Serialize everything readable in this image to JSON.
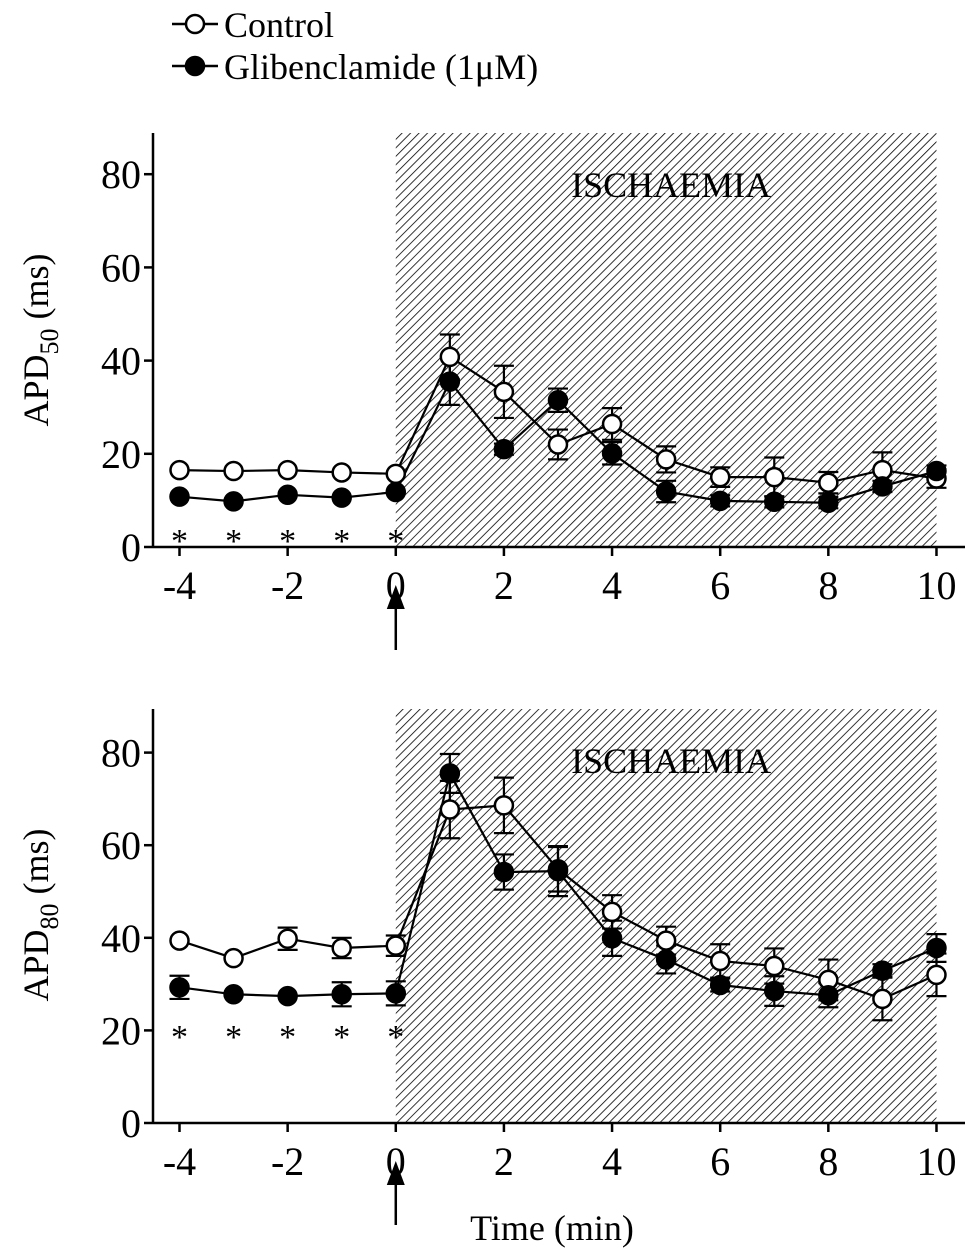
{
  "legend": [
    {
      "label": "Control",
      "marker": "open-circle"
    },
    {
      "label": "Glibenclamide (1μM)",
      "marker": "filled-circle"
    }
  ],
  "x_axis_title": "Time (min)",
  "colors": {
    "line": "#000000",
    "open_marker_fill": "#ffffff",
    "filled_marker_fill": "#000000",
    "hatch": "#000000"
  },
  "chart_data": [
    {
      "type": "line",
      "ylabel_main": "APD",
      "ylabel_sub": "50",
      "ylabel_unit": " (ms)",
      "shaded_region": {
        "label": "ISCHAEMIA",
        "x_start": 0,
        "x_end": 10,
        "pattern": "diagonal-hatch"
      },
      "event_marker": {
        "x": 0,
        "symbol": "up-arrow"
      },
      "significance": {
        "symbol": "*",
        "x": [
          -4,
          -3,
          -2,
          -1,
          0
        ]
      },
      "x_ticks": [
        -4,
        -2,
        0,
        2,
        4,
        6,
        8,
        10
      ],
      "y_ticks": [
        0,
        20,
        40,
        60,
        80
      ],
      "xlim": [
        -4.6,
        10.6
      ],
      "ylim": [
        0,
        90
      ],
      "grid": false,
      "series": [
        {
          "name": "Control",
          "x": [
            -4,
            -3,
            -2,
            -1,
            0,
            1,
            2,
            3,
            4,
            5,
            6,
            7,
            8,
            9,
            10
          ],
          "y": [
            16.5,
            16.3,
            16.5,
            16.0,
            15.7,
            40.8,
            33.3,
            22.0,
            26.4,
            18.8,
            15.0,
            15.0,
            13.8,
            16.5,
            14.7
          ],
          "err": [
            0.6,
            0.6,
            0.6,
            0.6,
            0.6,
            4.8,
            5.6,
            3.2,
            3.4,
            2.8,
            2.1,
            4.2,
            2.3,
            3.8,
            2.0
          ]
        },
        {
          "name": "Glibenclamide (1μM)",
          "x": [
            -4,
            -3,
            -2,
            -1,
            0,
            1,
            2,
            3,
            4,
            5,
            6,
            7,
            8,
            9,
            10
          ],
          "y": [
            10.8,
            9.8,
            11.2,
            10.6,
            11.8,
            35.5,
            21.0,
            31.5,
            20.1,
            11.9,
            9.9,
            9.7,
            9.5,
            13.0,
            16.3
          ],
          "err": [
            0.6,
            0.6,
            0.6,
            0.6,
            0.6,
            5.0,
            1.2,
            2.5,
            2.4,
            2.3,
            1.2,
            1.2,
            1.2,
            1.2,
            1.2
          ]
        }
      ]
    },
    {
      "type": "line",
      "ylabel_main": "APD",
      "ylabel_sub": "80",
      "ylabel_unit": " (ms)",
      "shaded_region": {
        "label": "ISCHAEMIA",
        "x_start": 0,
        "x_end": 10,
        "pattern": "diagonal-hatch"
      },
      "event_marker": {
        "x": 0,
        "symbol": "up-arrow"
      },
      "significance": {
        "symbol": "*",
        "x": [
          -4,
          -3,
          -2,
          -1,
          0
        ]
      },
      "x_ticks": [
        -4,
        -2,
        0,
        2,
        4,
        6,
        8,
        10
      ],
      "y_ticks": [
        0,
        20,
        40,
        60,
        80
      ],
      "xlim": [
        -4.6,
        10.6
      ],
      "ylim": [
        0,
        90
      ],
      "grid": false,
      "series": [
        {
          "name": "Control",
          "x": [
            -4,
            -3,
            -2,
            -1,
            0,
            1,
            2,
            3,
            4,
            5,
            6,
            7,
            8,
            9,
            10
          ],
          "y": [
            39.4,
            35.6,
            39.8,
            37.8,
            38.3,
            67.7,
            68.6,
            54.8,
            45.6,
            39.4,
            35.0,
            33.9,
            30.9,
            26.8,
            32.0
          ],
          "err": [
            0.6,
            0.6,
            2.4,
            2.2,
            2.2,
            6.2,
            6.0,
            4.8,
            3.6,
            3.0,
            3.6,
            3.8,
            4.4,
            4.6,
            4.6
          ]
        },
        {
          "name": "Glibenclamide (1μM)",
          "x": [
            -4,
            -3,
            -2,
            -1,
            0,
            1,
            2,
            3,
            4,
            5,
            6,
            7,
            8,
            9,
            10
          ],
          "y": [
            29.3,
            27.8,
            27.4,
            27.8,
            28.0,
            75.5,
            54.2,
            54.4,
            39.9,
            35.3,
            29.8,
            28.5,
            27.6,
            32.9,
            37.8
          ],
          "err": [
            2.5,
            0.6,
            0.6,
            2.6,
            2.6,
            4.2,
            3.8,
            5.4,
            3.8,
            3.0,
            1.4,
            3.2,
            2.6,
            1.4,
            3.0
          ]
        }
      ]
    }
  ]
}
